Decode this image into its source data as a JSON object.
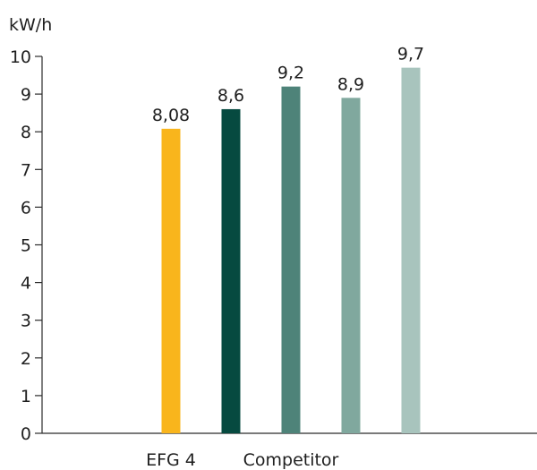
{
  "chart_data": {
    "type": "bar",
    "unit_label": "kW/h",
    "ylim": [
      0,
      10
    ],
    "y_ticks": [
      "0",
      "1",
      "2",
      "3",
      "4",
      "5",
      "6",
      "7",
      "8",
      "9",
      "10"
    ],
    "grid": false,
    "legend": "none",
    "bars": [
      {
        "value": 8.08,
        "label": "8,08",
        "color": "#F9B51C"
      },
      {
        "value": 8.6,
        "label": "8,6",
        "color": "#064A40"
      },
      {
        "value": 9.2,
        "label": "9,2",
        "color": "#4E8379"
      },
      {
        "value": 8.9,
        "label": "8,9",
        "color": "#80A89E"
      },
      {
        "value": 9.7,
        "label": "9,7",
        "color": "#A8C4BD"
      }
    ],
    "category_labels": [
      {
        "text": "EFG 4",
        "bar_index": 0
      },
      {
        "text": "Competitor",
        "bar_index": 2
      }
    ]
  }
}
